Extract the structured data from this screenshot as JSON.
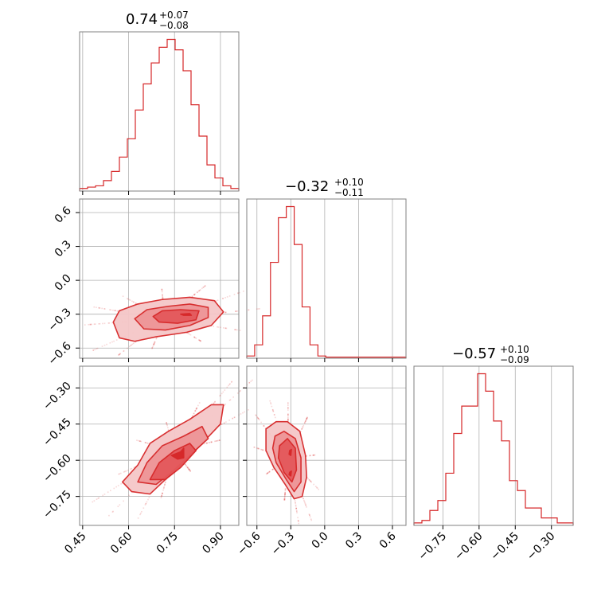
{
  "colors": {
    "series": "#d62728",
    "grid": "#b0b0b0",
    "frame": "#808080",
    "fill_outer": "#f5c7c8",
    "fill_mid": "#ee9597",
    "fill_inner": "#e4585b"
  },
  "chart_data": {
    "type": "corner",
    "parameters": [
      {
        "index": 0,
        "title_main": "0.74",
        "title_upper": "+0.07",
        "title_lower": "−0.08"
      },
      {
        "index": 1,
        "title_main": "−0.32",
        "title_upper": "+0.10",
        "title_lower": "−0.11"
      },
      {
        "index": 2,
        "title_main": "−0.57",
        "title_upper": "+0.10",
        "title_lower": "−0.09"
      }
    ],
    "grid": true,
    "axes": {
      "p0": {
        "range": [
          0.44,
          0.96
        ],
        "ticks": [
          0.45,
          0.6,
          0.75,
          0.9
        ],
        "tick_labels": [
          "0.45",
          "0.60",
          "0.75",
          "0.90"
        ]
      },
      "p1": {
        "range": [
          -0.69,
          0.72
        ],
        "ticks": [
          -0.6,
          -0.3,
          0.0,
          0.3,
          0.6
        ],
        "tick_labels": [
          "−0.6",
          "−0.3",
          "0.0",
          "0.3",
          "0.6"
        ]
      },
      "p2": {
        "range": [
          -0.87,
          -0.21
        ],
        "ticks": [
          -0.75,
          -0.6,
          -0.45,
          -0.3
        ],
        "tick_labels": [
          "−0.75",
          "−0.60",
          "−0.45",
          "−0.30"
        ]
      }
    },
    "histograms": [
      {
        "param": "p0",
        "edges": [
          0.44,
          0.466,
          0.492,
          0.518,
          0.544,
          0.57,
          0.596,
          0.622,
          0.648,
          0.674,
          0.7,
          0.726,
          0.752,
          0.778,
          0.804,
          0.83,
          0.856,
          0.882,
          0.908,
          0.934,
          0.96
        ],
        "counts": [
          1,
          1.5,
          2,
          4,
          7.5,
          13,
          20,
          31,
          41,
          49,
          55,
          58,
          54,
          46,
          33,
          21,
          10,
          5,
          2,
          1
        ]
      },
      {
        "param": "p1",
        "edges": [
          -0.69,
          -0.62,
          -0.55,
          -0.48,
          -0.41,
          -0.34,
          -0.27,
          -0.2,
          -0.13,
          -0.06,
          0.01,
          0.08,
          0.15,
          0.22,
          0.29,
          0.36,
          0.43,
          0.5,
          0.57,
          0.64,
          0.72
        ],
        "counts": [
          1,
          6,
          19,
          43,
          63,
          68,
          51,
          23,
          6,
          1,
          0.5,
          0.5,
          0.5,
          0.5,
          0.5,
          0.5,
          0.5,
          0.5,
          0.5,
          0.5
        ]
      },
      {
        "param": "p2",
        "edges": [
          -0.87,
          -0.837,
          -0.804,
          -0.771,
          -0.738,
          -0.705,
          -0.672,
          -0.639,
          -0.606,
          -0.573,
          -0.54,
          -0.507,
          -0.474,
          -0.441,
          -0.408,
          -0.375,
          -0.342,
          -0.309,
          -0.276,
          -0.243,
          -0.21
        ],
        "counts": [
          1,
          2,
          6,
          10,
          21,
          37,
          48,
          48,
          61,
          54,
          42,
          34,
          18,
          14,
          7,
          7,
          3,
          3,
          1,
          1
        ]
      }
    ],
    "contours_2d": [
      {
        "x_param": "p0",
        "y_param": "p1",
        "levels": [
          {
            "name": "outer",
            "points": [
              [
                0.55,
                -0.37
              ],
              [
                0.57,
                -0.27
              ],
              [
                0.63,
                -0.21
              ],
              [
                0.71,
                -0.17
              ],
              [
                0.8,
                -0.15
              ],
              [
                0.88,
                -0.18
              ],
              [
                0.91,
                -0.28
              ],
              [
                0.87,
                -0.4
              ],
              [
                0.79,
                -0.46
              ],
              [
                0.69,
                -0.5
              ],
              [
                0.62,
                -0.54
              ],
              [
                0.57,
                -0.51
              ]
            ]
          },
          {
            "name": "mid",
            "points": [
              [
                0.62,
                -0.34
              ],
              [
                0.66,
                -0.26
              ],
              [
                0.73,
                -0.23
              ],
              [
                0.8,
                -0.21
              ],
              [
                0.86,
                -0.24
              ],
              [
                0.86,
                -0.33
              ],
              [
                0.8,
                -0.4
              ],
              [
                0.72,
                -0.44
              ],
              [
                0.65,
                -0.43
              ]
            ]
          },
          {
            "name": "inner",
            "points": [
              [
                0.68,
                -0.32
              ],
              [
                0.71,
                -0.27
              ],
              [
                0.77,
                -0.26
              ],
              [
                0.83,
                -0.27
              ],
              [
                0.82,
                -0.35
              ],
              [
                0.76,
                -0.38
              ],
              [
                0.7,
                -0.37
              ]
            ]
          },
          {
            "name": "core",
            "points": [
              [
                0.77,
                -0.3
              ],
              [
                0.8,
                -0.295
              ],
              [
                0.805,
                -0.31
              ],
              [
                0.78,
                -0.31
              ]
            ]
          }
        ]
      },
      {
        "x_param": "p0",
        "y_param": "p2",
        "levels": [
          {
            "name": "outer",
            "points": [
              [
                0.58,
                -0.69
              ],
              [
                0.63,
                -0.62
              ],
              [
                0.67,
                -0.53
              ],
              [
                0.73,
                -0.48
              ],
              [
                0.8,
                -0.43
              ],
              [
                0.87,
                -0.37
              ],
              [
                0.91,
                -0.37
              ],
              [
                0.9,
                -0.45
              ],
              [
                0.84,
                -0.53
              ],
              [
                0.78,
                -0.61
              ],
              [
                0.72,
                -0.68
              ],
              [
                0.67,
                -0.74
              ],
              [
                0.61,
                -0.73
              ]
            ]
          },
          {
            "name": "mid",
            "points": [
              [
                0.63,
                -0.69
              ],
              [
                0.66,
                -0.61
              ],
              [
                0.71,
                -0.54
              ],
              [
                0.78,
                -0.5
              ],
              [
                0.84,
                -0.46
              ],
              [
                0.86,
                -0.51
              ],
              [
                0.8,
                -0.58
              ],
              [
                0.74,
                -0.65
              ],
              [
                0.69,
                -0.7
              ]
            ]
          },
          {
            "name": "inner",
            "points": [
              [
                0.67,
                -0.68
              ],
              [
                0.7,
                -0.61
              ],
              [
                0.75,
                -0.56
              ],
              [
                0.8,
                -0.53
              ],
              [
                0.82,
                -0.56
              ],
              [
                0.77,
                -0.63
              ],
              [
                0.72,
                -0.68
              ]
            ]
          },
          {
            "name": "core",
            "points": [
              [
                0.74,
                -0.58
              ],
              [
                0.77,
                -0.565
              ],
              [
                0.78,
                -0.55
              ],
              [
                0.78,
                -0.59
              ],
              [
                0.76,
                -0.595
              ]
            ]
          }
        ]
      },
      {
        "x_param": "p1",
        "y_param": "p2",
        "levels": [
          {
            "name": "outer",
            "points": [
              [
                -0.52,
                -0.47
              ],
              [
                -0.43,
                -0.44
              ],
              [
                -0.33,
                -0.44
              ],
              [
                -0.22,
                -0.48
              ],
              [
                -0.17,
                -0.58
              ],
              [
                -0.16,
                -0.67
              ],
              [
                -0.2,
                -0.75
              ],
              [
                -0.27,
                -0.76
              ],
              [
                -0.35,
                -0.7
              ],
              [
                -0.45,
                -0.63
              ],
              [
                -0.52,
                -0.56
              ]
            ]
          },
          {
            "name": "mid",
            "points": [
              [
                -0.44,
                -0.5
              ],
              [
                -0.36,
                -0.48
              ],
              [
                -0.26,
                -0.51
              ],
              [
                -0.21,
                -0.59
              ],
              [
                -0.21,
                -0.69
              ],
              [
                -0.27,
                -0.73
              ],
              [
                -0.34,
                -0.68
              ],
              [
                -0.43,
                -0.61
              ],
              [
                -0.46,
                -0.55
              ]
            ]
          },
          {
            "name": "inner",
            "points": [
              [
                -0.4,
                -0.54
              ],
              [
                -0.33,
                -0.51
              ],
              [
                -0.26,
                -0.55
              ],
              [
                -0.25,
                -0.64
              ],
              [
                -0.29,
                -0.69
              ],
              [
                -0.36,
                -0.65
              ],
              [
                -0.41,
                -0.59
              ]
            ]
          },
          {
            "name": "core",
            "points": [
              [
                -0.31,
                -0.56
              ],
              [
                -0.295,
                -0.555
              ],
              [
                -0.3,
                -0.58
              ],
              [
                -0.315,
                -0.575
              ]
            ]
          },
          {
            "name": "core2",
            "points": [
              [
                -0.31,
                -0.65
              ],
              [
                -0.295,
                -0.645
              ],
              [
                -0.3,
                -0.665
              ],
              [
                -0.315,
                -0.66
              ]
            ]
          }
        ]
      }
    ]
  }
}
